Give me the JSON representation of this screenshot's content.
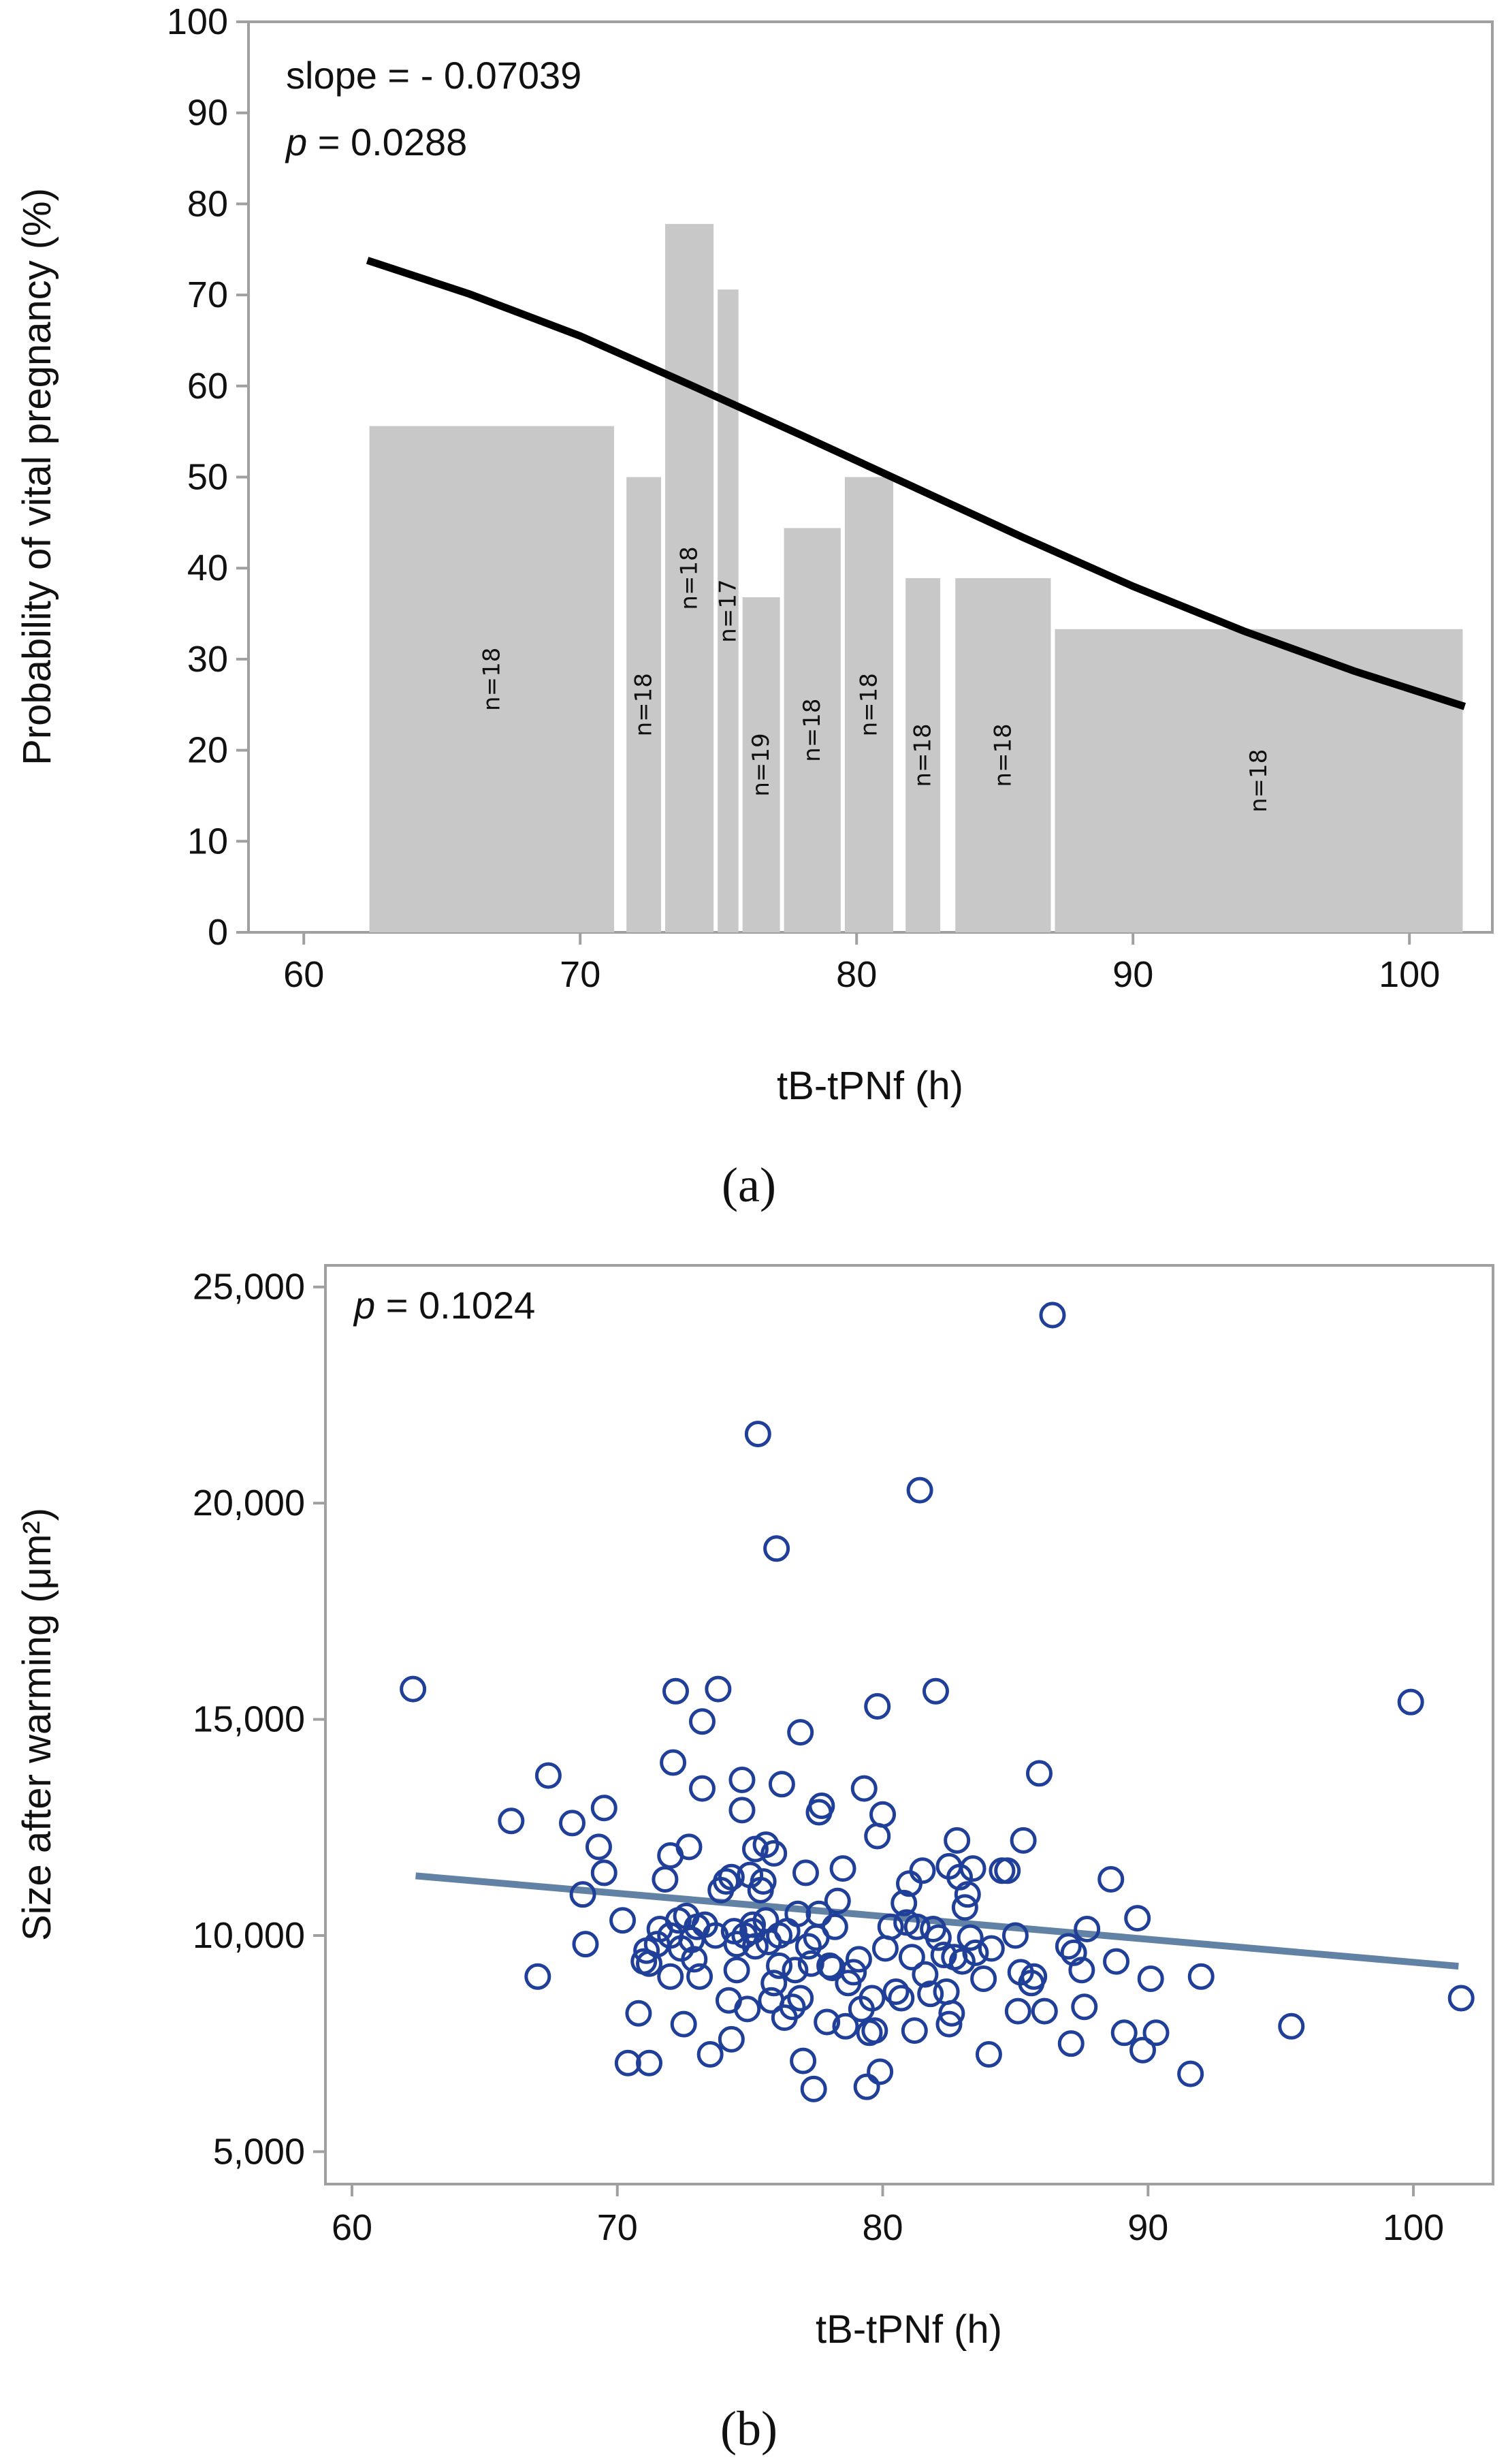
{
  "chart_data": [
    {
      "type": "bar",
      "panel_label": "(a)",
      "xlabel": "tB-tPNf (h)",
      "ylabel": "Probability of vital pregnancy (%)",
      "xlim": [
        58,
        103
      ],
      "ylim": [
        0,
        100
      ],
      "xticks": [
        60,
        70,
        80,
        90,
        100
      ],
      "yticks": [
        0,
        10,
        20,
        30,
        40,
        50,
        60,
        70,
        80,
        90,
        100
      ],
      "annotations": {
        "slope_text": "slope = - 0.07039",
        "p_label": "p",
        "p_value": " = 0.0288"
      },
      "bar_color": "#c8c8c8",
      "line_color": "#000000",
      "bars": [
        {
          "x0": 62.3,
          "x1": 71.3,
          "value": 55.6,
          "label": "n=18"
        },
        {
          "x0": 71.6,
          "x1": 73.0,
          "value": 50.0,
          "label": "n=18"
        },
        {
          "x0": 73.0,
          "x1": 74.9,
          "value": 77.8,
          "label": "n=18"
        },
        {
          "x0": 74.9,
          "x1": 75.8,
          "value": 70.6,
          "label": "n=17"
        },
        {
          "x0": 75.8,
          "x1": 77.3,
          "value": 36.8,
          "label": "n=19"
        },
        {
          "x0": 77.3,
          "x1": 79.5,
          "value": 44.4,
          "label": "n=18"
        },
        {
          "x0": 79.5,
          "x1": 81.4,
          "value": 50.0,
          "label": "n=18"
        },
        {
          "x0": 81.7,
          "x1": 83.1,
          "value": 38.9,
          "label": "n=18"
        },
        {
          "x0": 83.5,
          "x1": 87.1,
          "value": 38.9,
          "label": "n=18"
        },
        {
          "x0": 87.1,
          "x1": 102.0,
          "value": 33.3,
          "label": "n=18"
        }
      ],
      "fit_line": {
        "x": [
          62.3,
          66,
          70,
          74,
          78,
          82,
          86,
          90,
          94,
          98,
          102
        ],
        "y": [
          73.8,
          70.1,
          65.5,
          60.1,
          54.6,
          49.0,
          43.4,
          38.0,
          33.1,
          28.7,
          24.8
        ]
      }
    },
    {
      "type": "scatter",
      "panel_label": "(b)",
      "xlabel": "tB-tPNf (h)",
      "ylabel": "Size after warming (μm²)",
      "xlim": [
        59,
        103
      ],
      "ylim": [
        4250,
        25500
      ],
      "xticks": [
        60,
        70,
        80,
        90,
        100
      ],
      "yticks": [
        5000,
        10000,
        15000,
        20000,
        25000
      ],
      "ytick_labels": [
        "5,000",
        "10,000",
        "15,000",
        "20,000",
        "25,000"
      ],
      "annotations": {
        "p_label": "p",
        "p_value": " = 0.1024"
      },
      "point_color": "#1f3f99",
      "line_color": "#6282a5",
      "fit_line": {
        "x": [
          62.4,
          101.7
        ],
        "y": [
          11380,
          9290
        ]
      },
      "points": [
        [
          62.3,
          15700
        ],
        [
          66.0,
          12650
        ],
        [
          67.0,
          9050
        ],
        [
          67.4,
          13700
        ],
        [
          68.3,
          12600
        ],
        [
          68.7,
          10950
        ],
        [
          68.8,
          9800
        ],
        [
          69.3,
          12050
        ],
        [
          69.5,
          12950
        ],
        [
          69.5,
          11450
        ],
        [
          70.2,
          10350
        ],
        [
          70.4,
          7050
        ],
        [
          70.8,
          8200
        ],
        [
          71.0,
          9400
        ],
        [
          71.1,
          9650
        ],
        [
          71.2,
          7050
        ],
        [
          71.2,
          9350
        ],
        [
          71.5,
          9800
        ],
        [
          71.6,
          10150
        ],
        [
          71.8,
          11300
        ],
        [
          72.0,
          9050
        ],
        [
          72.0,
          10000
        ],
        [
          72.0,
          11850
        ],
        [
          72.1,
          14000
        ],
        [
          72.2,
          15650
        ],
        [
          72.3,
          10350
        ],
        [
          72.4,
          9700
        ],
        [
          72.5,
          7950
        ],
        [
          72.6,
          10450
        ],
        [
          72.7,
          12050
        ],
        [
          72.8,
          9900
        ],
        [
          72.9,
          9450
        ],
        [
          73.0,
          10200
        ],
        [
          73.1,
          9050
        ],
        [
          73.2,
          14950
        ],
        [
          73.2,
          13400
        ],
        [
          73.3,
          10250
        ],
        [
          73.5,
          7250
        ],
        [
          73.7,
          10000
        ],
        [
          73.8,
          15700
        ],
        [
          73.9,
          11050
        ],
        [
          74.1,
          11250
        ],
        [
          74.2,
          8500
        ],
        [
          74.3,
          7600
        ],
        [
          74.3,
          11350
        ],
        [
          74.4,
          10100
        ],
        [
          74.5,
          9800
        ],
        [
          74.5,
          9200
        ],
        [
          74.7,
          13600
        ],
        [
          74.7,
          12900
        ],
        [
          74.8,
          10000
        ],
        [
          74.9,
          8300
        ],
        [
          75.0,
          11400
        ],
        [
          75.1,
          10250
        ],
        [
          75.1,
          10100
        ],
        [
          75.2,
          9750
        ],
        [
          75.2,
          12000
        ],
        [
          75.3,
          21600
        ],
        [
          75.4,
          11050
        ],
        [
          75.5,
          11250
        ],
        [
          75.6,
          10350
        ],
        [
          75.6,
          12100
        ],
        [
          75.7,
          9850
        ],
        [
          75.8,
          8500
        ],
        [
          75.9,
          8900
        ],
        [
          75.9,
          11900
        ],
        [
          76.0,
          18950
        ],
        [
          76.1,
          10000
        ],
        [
          76.1,
          9300
        ],
        [
          76.2,
          13500
        ],
        [
          76.3,
          8100
        ],
        [
          76.4,
          10100
        ],
        [
          76.6,
          8350
        ],
        [
          76.7,
          9200
        ],
        [
          76.8,
          10500
        ],
        [
          76.9,
          14700
        ],
        [
          76.9,
          8550
        ],
        [
          77.0,
          7100
        ],
        [
          77.1,
          11450
        ],
        [
          77.2,
          9750
        ],
        [
          77.3,
          9350
        ],
        [
          77.4,
          6450
        ],
        [
          77.5,
          9950
        ],
        [
          77.6,
          10500
        ],
        [
          77.6,
          12850
        ],
        [
          77.7,
          13000
        ],
        [
          77.9,
          8000
        ],
        [
          78.0,
          9300
        ],
        [
          78.1,
          9250
        ],
        [
          78.2,
          10200
        ],
        [
          78.3,
          10800
        ],
        [
          78.5,
          11550
        ],
        [
          78.6,
          7900
        ],
        [
          78.7,
          8900
        ],
        [
          78.9,
          9150
        ],
        [
          79.1,
          9450
        ],
        [
          79.2,
          8300
        ],
        [
          79.3,
          13400
        ],
        [
          79.4,
          6500
        ],
        [
          79.5,
          7750
        ],
        [
          79.6,
          8550
        ],
        [
          79.7,
          7800
        ],
        [
          79.8,
          12300
        ],
        [
          79.8,
          15300
        ],
        [
          79.9,
          6850
        ],
        [
          80.0,
          12800
        ],
        [
          80.1,
          9700
        ],
        [
          80.3,
          10200
        ],
        [
          80.5,
          8700
        ],
        [
          80.7,
          8550
        ],
        [
          80.8,
          10750
        ],
        [
          80.9,
          10300
        ],
        [
          81.0,
          11200
        ],
        [
          81.1,
          9500
        ],
        [
          81.2,
          7800
        ],
        [
          81.3,
          10200
        ],
        [
          81.4,
          20300
        ],
        [
          81.5,
          11500
        ],
        [
          81.6,
          9100
        ],
        [
          81.8,
          8650
        ],
        [
          81.9,
          10150
        ],
        [
          82.0,
          15650
        ],
        [
          82.1,
          9950
        ],
        [
          82.3,
          9550
        ],
        [
          82.4,
          8700
        ],
        [
          82.5,
          7950
        ],
        [
          82.5,
          11600
        ],
        [
          82.6,
          8200
        ],
        [
          82.7,
          9500
        ],
        [
          82.8,
          12200
        ],
        [
          82.9,
          11350
        ],
        [
          83.0,
          9400
        ],
        [
          83.1,
          10650
        ],
        [
          83.2,
          10950
        ],
        [
          83.3,
          9950
        ],
        [
          83.4,
          11550
        ],
        [
          83.5,
          9600
        ],
        [
          83.8,
          9000
        ],
        [
          84.0,
          7250
        ],
        [
          84.1,
          9700
        ],
        [
          84.5,
          11500
        ],
        [
          84.7,
          11500
        ],
        [
          85.0,
          10000
        ],
        [
          85.1,
          8250
        ],
        [
          85.2,
          9150
        ],
        [
          85.3,
          12200
        ],
        [
          85.6,
          8900
        ],
        [
          85.7,
          9050
        ],
        [
          85.9,
          13750
        ],
        [
          86.1,
          8250
        ],
        [
          86.4,
          24350
        ],
        [
          87.0,
          9750
        ],
        [
          87.1,
          7500
        ],
        [
          87.2,
          9600
        ],
        [
          87.5,
          9200
        ],
        [
          87.6,
          8350
        ],
        [
          87.7,
          10150
        ],
        [
          88.6,
          11300
        ],
        [
          88.8,
          9400
        ],
        [
          89.1,
          7750
        ],
        [
          89.6,
          10400
        ],
        [
          89.8,
          7350
        ],
        [
          90.1,
          9000
        ],
        [
          90.3,
          7750
        ],
        [
          91.6,
          6800
        ],
        [
          92.0,
          9050
        ],
        [
          95.4,
          7900
        ],
        [
          99.9,
          15400
        ],
        [
          101.8,
          8550
        ]
      ]
    }
  ]
}
